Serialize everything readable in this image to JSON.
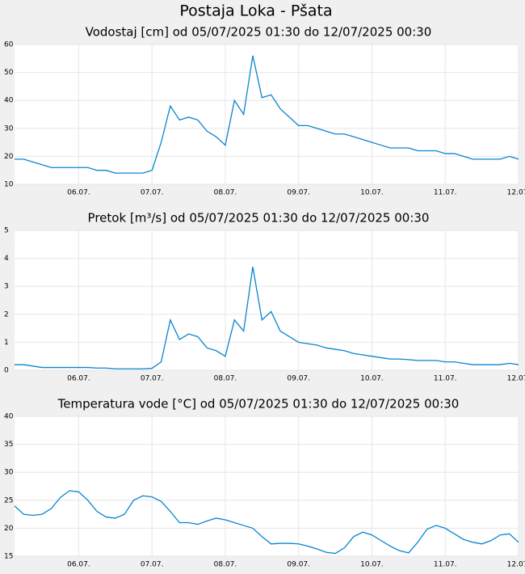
{
  "title": "Postaja Loka - Pšata",
  "chart_data": [
    {
      "type": "line",
      "title": "Vodostaj [cm] od 05/07/2025 01:30 do 12/07/2025 00:30",
      "categories": [
        null,
        null,
        null,
        null,
        null,
        null,
        null,
        "06.07.",
        null,
        null,
        null,
        null,
        null,
        null,
        null,
        "07.07.",
        null,
        null,
        null,
        null,
        null,
        null,
        null,
        "08.07.",
        null,
        null,
        null,
        null,
        null,
        null,
        null,
        "09.07.",
        null,
        null,
        null,
        null,
        null,
        null,
        null,
        "10.07.",
        null,
        null,
        null,
        null,
        null,
        null,
        null,
        "11.07.",
        null,
        null,
        null,
        null,
        null,
        null,
        null,
        "12.07."
      ],
      "series": [
        {
          "name": "Vodostaj",
          "color": "#0a84d0",
          "values": [
            19,
            19,
            18,
            17,
            16,
            16,
            16,
            16,
            16,
            15,
            15,
            14,
            14,
            14,
            14,
            15,
            25,
            38,
            33,
            34,
            33,
            29,
            27,
            24,
            40,
            35,
            56,
            41,
            42,
            37,
            34,
            31,
            31,
            30,
            29,
            28,
            28,
            27,
            26,
            25,
            24,
            23,
            23,
            23,
            22,
            22,
            22,
            21,
            21,
            20,
            19,
            19,
            19,
            19,
            20,
            19
          ]
        }
      ],
      "ylim": [
        10,
        60
      ],
      "yticks": [
        10,
        20,
        30,
        40,
        50,
        60
      ],
      "grid": true
    },
    {
      "type": "line",
      "title": "Pretok [m³/s] od 05/07/2025 01:30 do 12/07/2025 00:30",
      "categories": [
        null,
        null,
        null,
        null,
        null,
        null,
        null,
        "06.07.",
        null,
        null,
        null,
        null,
        null,
        null,
        null,
        "07.07.",
        null,
        null,
        null,
        null,
        null,
        null,
        null,
        "08.07.",
        null,
        null,
        null,
        null,
        null,
        null,
        null,
        "09.07.",
        null,
        null,
        null,
        null,
        null,
        null,
        null,
        "10.07.",
        null,
        null,
        null,
        null,
        null,
        null,
        null,
        "11.07.",
        null,
        null,
        null,
        null,
        null,
        null,
        null,
        "12.07."
      ],
      "series": [
        {
          "name": "Pretok",
          "color": "#0a84d0",
          "values": [
            0.2,
            0.2,
            0.15,
            0.1,
            0.1,
            0.1,
            0.1,
            0.1,
            0.1,
            0.08,
            0.08,
            0.05,
            0.05,
            0.05,
            0.05,
            0.07,
            0.3,
            1.8,
            1.1,
            1.3,
            1.2,
            0.8,
            0.7,
            0.5,
            1.8,
            1.4,
            3.7,
            1.8,
            2.1,
            1.4,
            1.2,
            1.0,
            0.95,
            0.9,
            0.8,
            0.75,
            0.7,
            0.6,
            0.55,
            0.5,
            0.45,
            0.4,
            0.4,
            0.38,
            0.35,
            0.35,
            0.35,
            0.3,
            0.3,
            0.25,
            0.2,
            0.2,
            0.2,
            0.2,
            0.25,
            0.2
          ]
        }
      ],
      "ylim": [
        0,
        5
      ],
      "yticks": [
        0,
        1,
        2,
        3,
        4,
        5
      ],
      "grid": true
    },
    {
      "type": "line",
      "title": "Temperatura vode [°C] od 05/07/2025 01:30 do 12/07/2025 00:30",
      "categories": [
        null,
        null,
        null,
        null,
        null,
        null,
        null,
        "06.07.",
        null,
        null,
        null,
        null,
        null,
        null,
        null,
        "07.07.",
        null,
        null,
        null,
        null,
        null,
        null,
        null,
        "08.07.",
        null,
        null,
        null,
        null,
        null,
        null,
        null,
        "09.07.",
        null,
        null,
        null,
        null,
        null,
        null,
        null,
        "10.07.",
        null,
        null,
        null,
        null,
        null,
        null,
        null,
        "11.07.",
        null,
        null,
        null,
        null,
        null,
        null,
        null,
        "12.07."
      ],
      "series": [
        {
          "name": "Temperatura vode",
          "color": "#0a84d0",
          "values": [
            24,
            22.5,
            22.3,
            22.5,
            23.5,
            25.5,
            26.7,
            26.5,
            25,
            23,
            22,
            21.8,
            22.5,
            25,
            25.8,
            25.6,
            24.8,
            23,
            21,
            21,
            20.7,
            21.3,
            21.8,
            21.5,
            21,
            20.5,
            20,
            18.5,
            17.2,
            17.3,
            17.3,
            17.2,
            16.8,
            16.3,
            15.7,
            15.5,
            16.5,
            18.5,
            19.3,
            18.8,
            17.8,
            16.8,
            16,
            15.6,
            17.5,
            19.8,
            20.5,
            20,
            19,
            18,
            17.5,
            17.2,
            17.8,
            18.8,
            19,
            17.5
          ]
        }
      ],
      "ylim": [
        15,
        40
      ],
      "yticks": [
        15,
        20,
        25,
        30,
        35,
        40
      ],
      "grid": true
    }
  ]
}
